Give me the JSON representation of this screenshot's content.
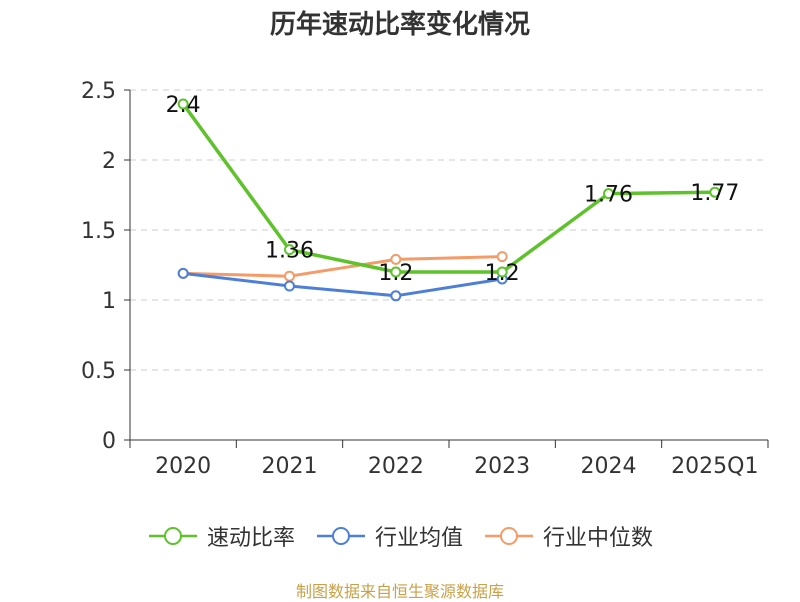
{
  "chart_data": {
    "type": "line",
    "title": "历年速动比率变化情况",
    "categories": [
      "2020",
      "2021",
      "2022",
      "2023",
      "2024",
      "2025Q1"
    ],
    "ylim": [
      0,
      2.5
    ],
    "yticks": [
      "0",
      "0.5",
      "1",
      "1.5",
      "2",
      "2.5"
    ],
    "grid": true,
    "legend_position": "bottom",
    "series": [
      {
        "name": "速动比率",
        "color": "#5ec22a",
        "values": [
          2.4,
          1.36,
          1.2,
          1.2,
          1.76,
          1.77
        ],
        "labels": [
          "2.4",
          "1.36",
          "1.2",
          "1.2",
          "1.76",
          "1.77"
        ]
      },
      {
        "name": "行业均值",
        "color": "#4e7fd8",
        "values": [
          1.19,
          1.1,
          1.03,
          1.15,
          null,
          null
        ]
      },
      {
        "name": "行业中位数",
        "color": "#f59b68",
        "values": [
          1.19,
          1.17,
          1.29,
          1.31,
          null,
          null
        ]
      }
    ]
  },
  "source": {
    "text": "制图数据来自恒生聚源数据库",
    "color": "#c9a14a"
  }
}
